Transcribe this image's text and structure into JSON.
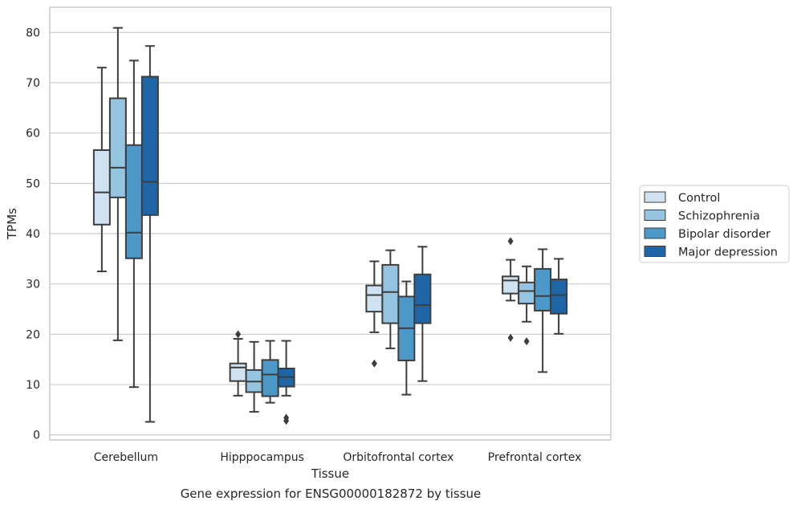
{
  "caption": "Gene expression for ENSG00000182872 by tissue",
  "chart_data": {
    "type": "boxplot",
    "xlabel": "Tissue",
    "ylabel": "TPMs",
    "ylim": [
      -1,
      85
    ],
    "yticks": [
      0,
      10,
      20,
      30,
      40,
      50,
      60,
      70,
      80
    ],
    "grid": "horizontal",
    "legend_position": "right",
    "categories": [
      "Cerebellum",
      "Hipppocampus",
      "Orbitofrontal cortex",
      "Prefrontal cortex"
    ],
    "series": [
      {
        "name": "Control",
        "color": "#d0e1f2",
        "boxes": [
          {
            "whislo": 32.5,
            "q1": 41.8,
            "med": 48.2,
            "q3": 56.6,
            "whishi": 73.0,
            "fliers": []
          },
          {
            "whislo": 7.8,
            "q1": 10.7,
            "med": 13.4,
            "q3": 14.2,
            "whishi": 19.1,
            "fliers": [
              20.0
            ]
          },
          {
            "whislo": 20.4,
            "q1": 24.5,
            "med": 27.8,
            "q3": 29.7,
            "whishi": 34.5,
            "fliers": [
              14.2
            ]
          },
          {
            "whislo": 26.7,
            "q1": 28.1,
            "med": 30.7,
            "q3": 31.5,
            "whishi": 34.8,
            "fliers": [
              38.5,
              19.3
            ]
          }
        ]
      },
      {
        "name": "Schizophrenia",
        "color": "#94c4df",
        "boxes": [
          {
            "whislo": 18.8,
            "q1": 47.2,
            "med": 53.1,
            "q3": 66.9,
            "whishi": 80.9,
            "fliers": []
          },
          {
            "whislo": 4.6,
            "q1": 8.5,
            "med": 10.6,
            "q3": 12.9,
            "whishi": 18.5,
            "fliers": []
          },
          {
            "whislo": 17.2,
            "q1": 22.2,
            "med": 28.4,
            "q3": 33.8,
            "whishi": 36.7,
            "fliers": []
          },
          {
            "whislo": 22.5,
            "q1": 26.1,
            "med": 28.6,
            "q3": 30.3,
            "whishi": 33.5,
            "fliers": [
              18.6
            ]
          }
        ]
      },
      {
        "name": "Bipolar disorder",
        "color": "#4b98c9",
        "boxes": [
          {
            "whislo": 9.5,
            "q1": 35.1,
            "med": 40.2,
            "q3": 57.6,
            "whishi": 74.4,
            "fliers": []
          },
          {
            "whislo": 6.4,
            "q1": 7.7,
            "med": 12.0,
            "q3": 14.9,
            "whishi": 18.7,
            "fliers": []
          },
          {
            "whislo": 8.0,
            "q1": 14.8,
            "med": 21.2,
            "q3": 27.5,
            "whishi": 30.5,
            "fliers": []
          },
          {
            "whislo": 12.5,
            "q1": 24.7,
            "med": 27.6,
            "q3": 33.0,
            "whishi": 36.9,
            "fliers": []
          }
        ]
      },
      {
        "name": "Major depression",
        "color": "#1f66a8",
        "boxes": [
          {
            "whislo": 2.6,
            "q1": 43.7,
            "med": 50.3,
            "q3": 71.2,
            "whishi": 77.3,
            "fliers": []
          },
          {
            "whislo": 7.8,
            "q1": 9.6,
            "med": 11.5,
            "q3": 13.2,
            "whishi": 18.7,
            "fliers": [
              3.4,
              2.8
            ]
          },
          {
            "whislo": 10.7,
            "q1": 22.2,
            "med": 25.8,
            "q3": 31.9,
            "whishi": 37.4,
            "fliers": []
          },
          {
            "whislo": 20.1,
            "q1": 24.1,
            "med": 27.8,
            "q3": 30.9,
            "whishi": 35.0,
            "fliers": []
          }
        ]
      }
    ]
  }
}
